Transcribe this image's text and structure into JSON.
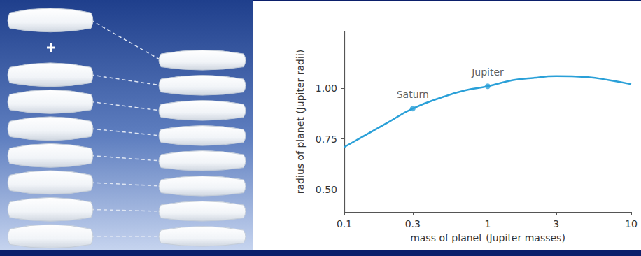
{
  "chart_data": {
    "type": "line",
    "xlabel": "mass of planet (Jupiter masses)",
    "ylabel": "radius of planet (Jupiter radii)",
    "x": [
      0.1,
      0.15,
      0.2,
      0.3,
      0.5,
      0.7,
      1,
      1.5,
      2,
      3,
      5,
      7,
      10
    ],
    "values": [
      0.71,
      0.78,
      0.83,
      0.9,
      0.96,
      0.99,
      1.01,
      1.04,
      1.05,
      1.06,
      1.055,
      1.04,
      1.02
    ],
    "color": "#2aa0d8",
    "log": "x",
    "xlim": [
      0.1,
      10
    ],
    "xticks": [
      0.1,
      0.3,
      1,
      3,
      10
    ],
    "ylim": [
      0.39,
      1.28
    ],
    "yticks": [
      {
        "value": 0.5,
        "label": "0.50"
      },
      {
        "value": 0.75,
        "label": "0.75"
      },
      {
        "value": 1,
        "label": "1.00"
      }
    ],
    "grid": false,
    "marker": "circle",
    "annotations": [
      {
        "text": "Saturn",
        "x": 0.3,
        "y": 0.9
      },
      {
        "text": "Jupiter",
        "x": 1,
        "y": 1.01
      }
    ]
  }
}
